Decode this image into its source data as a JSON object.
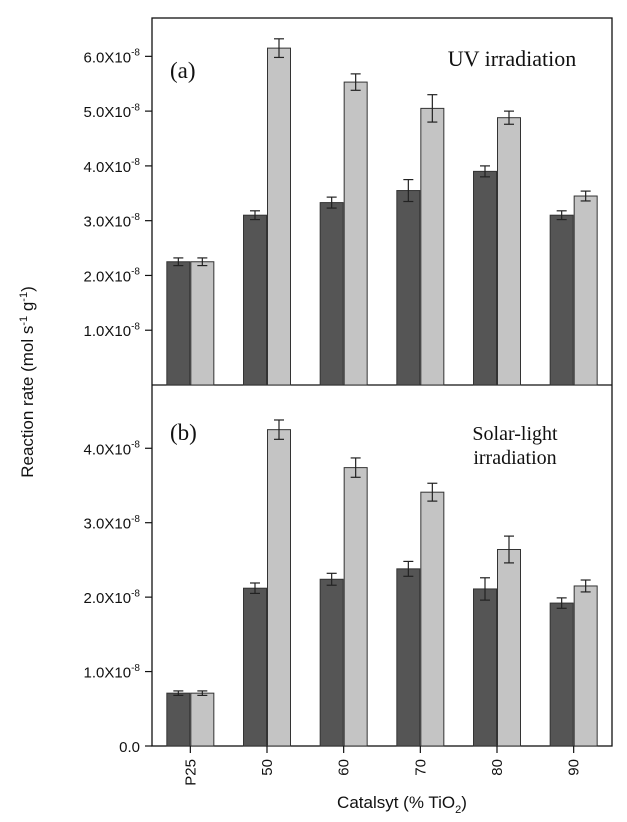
{
  "chart_data": {
    "type": "bar",
    "ylabel": "Reaction rate (mol s-1 g-1)",
    "xlabel": "Catalsyt (% TiO2)",
    "categories": [
      "P25",
      "50",
      "60",
      "70",
      "80",
      "90"
    ],
    "colors": {
      "dark": "#555555",
      "light": "#c4c4c4",
      "axis": "#111111"
    },
    "panels": [
      {
        "panel_label": "(a)",
        "title": "UV irradiation",
        "ylim": [
          0,
          6.7e-08
        ],
        "yticks": [
          1e-08,
          2e-08,
          3e-08,
          4e-08,
          5e-08,
          6e-08
        ],
        "ytick_labels": [
          "1.0X10-8",
          "2.0X10-8",
          "3.0X10-8",
          "4.0X10-8",
          "5.0X10-8",
          "6.0X10-8"
        ],
        "series": [
          {
            "values": [
              2.25e-08,
              3.1e-08,
              3.33e-08,
              3.55e-08,
              3.9e-08,
              3.1e-08
            ],
            "errors": [
              7e-10,
              8e-10,
              1e-09,
              2e-09,
              1e-09,
              8e-10
            ]
          },
          {
            "values": [
              2.25e-08,
              6.15e-08,
              5.53e-08,
              5.05e-08,
              4.88e-08,
              3.45e-08
            ],
            "errors": [
              7e-10,
              1.7e-09,
              1.5e-09,
              2.5e-09,
              1.2e-09,
              9e-10
            ]
          }
        ]
      },
      {
        "panel_label": "(b)",
        "title": "Solar-light irradiation",
        "ylim": [
          0,
          4.85e-08
        ],
        "yticks": [
          0,
          1e-08,
          2e-08,
          3e-08,
          4e-08
        ],
        "ytick_labels": [
          "0.0",
          "1.0X10-8",
          "2.0X10-8",
          "3.0X10-8",
          "4.0X10-8"
        ],
        "series": [
          {
            "values": [
              7.1e-09,
              2.12e-08,
              2.24e-08,
              2.38e-08,
              2.11e-08,
              1.92e-08
            ],
            "errors": [
              3e-10,
              7e-10,
              8e-10,
              1e-09,
              1.5e-09,
              7e-10
            ]
          },
          {
            "values": [
              7.1e-09,
              4.25e-08,
              3.74e-08,
              3.41e-08,
              2.64e-08,
              2.15e-08
            ],
            "errors": [
              3e-10,
              1.3e-09,
              1.3e-09,
              1.2e-09,
              1.8e-09,
              8e-10
            ]
          }
        ]
      }
    ]
  }
}
